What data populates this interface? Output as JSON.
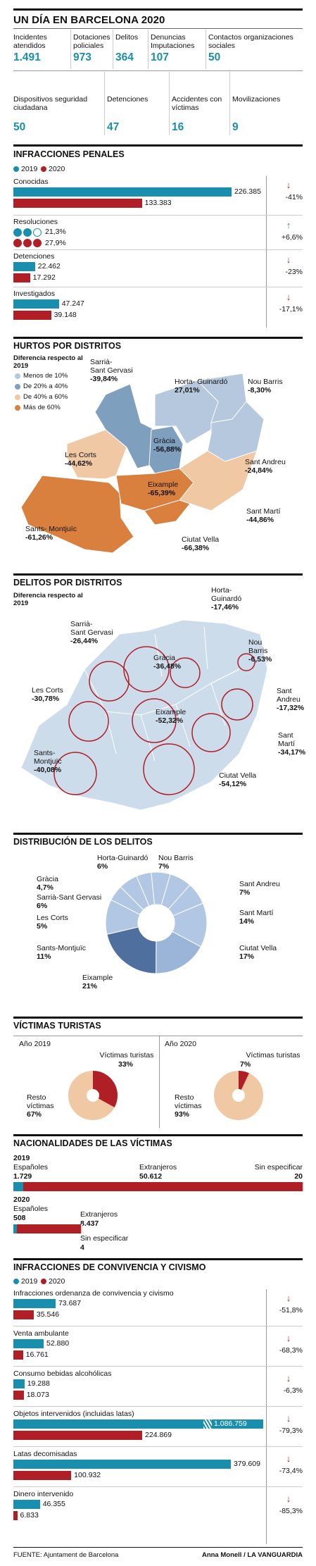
{
  "header": {
    "title": "UN DÍA EN BARCELONA 2020"
  },
  "stats_row1": [
    {
      "label": "Incidentes atendidos",
      "value": "1.491"
    },
    {
      "label": "Dotaciones policiales",
      "value": "973"
    },
    {
      "label": "Delitos",
      "value": "364"
    },
    {
      "label": "Denuncias Imputaciones",
      "value": "107"
    },
    {
      "label": "Contactos organizaciones sociales",
      "value": "50"
    }
  ],
  "stats_row2": [
    {
      "label": "Dispositivos seguridad ciudadana",
      "value": "50"
    },
    {
      "label": "Detenciones",
      "value": "47"
    },
    {
      "label": "Accidentes con víctimas",
      "value": "16"
    },
    {
      "label": "Movilizaciones",
      "value": "9"
    }
  ],
  "infracciones_penales": {
    "title": "INFRACCIONES PENALES",
    "legend": [
      "2019",
      "2020"
    ],
    "items": [
      {
        "label": "Conocidas",
        "v2019": "226.385",
        "v2020": "133.383",
        "n2019": 226385,
        "n2020": 133383,
        "change": "-41%",
        "dir": "down"
      },
      {
        "label": "Resoluciones",
        "v2019": "21,3%",
        "v2020": "27,9%",
        "change": "+6,6%",
        "dir": "up"
      },
      {
        "label": "Detenciones",
        "v2019": "22.462",
        "v2020": "17.292",
        "n2019": 22462,
        "n2020": 17292,
        "change": "-23%",
        "dir": "down"
      },
      {
        "label": "Investigados",
        "v2019": "47.247",
        "v2020": "39.148",
        "n2019": 47247,
        "n2020": 39148,
        "change": "-17,1%",
        "dir": "down"
      }
    ]
  },
  "hurtos": {
    "title": "HURTOS POR DISTRITOS",
    "legend_title": "Diferencia respecto al 2019",
    "legend": [
      {
        "label": "Menos de 10%",
        "color": "#b5c8dd"
      },
      {
        "label": "De 20% a 40%",
        "color": "#7f9fbf"
      },
      {
        "label": "De 40% a 60%",
        "color": "#f0c8a4"
      },
      {
        "label": "Más de 60%",
        "color": "#d9803f"
      }
    ],
    "districts": [
      {
        "name": "Sarrià-\nSant Gervasi",
        "value": "-39,84%"
      },
      {
        "name": "Horta- Guinardó",
        "value": "27,01%"
      },
      {
        "name": "Nou Barris",
        "value": "-8,30%"
      },
      {
        "name": "Les Corts",
        "value": "-44,62%"
      },
      {
        "name": "Gràcia",
        "value": "-56,88%"
      },
      {
        "name": "Sant Andreu",
        "value": "-24,84%"
      },
      {
        "name": "Eixample",
        "value": "-65,39%"
      },
      {
        "name": "Sant Martí",
        "value": "-44,86%"
      },
      {
        "name": "Sants- Montjuïc",
        "value": "-61,26%"
      },
      {
        "name": "Ciutat Vella",
        "value": "-66,38%"
      }
    ]
  },
  "delitos": {
    "title": "DELITOS POR DISTRITOS",
    "legend_title": "Diferencia respecto al 2019",
    "districts": [
      {
        "name": "Sarrià-\nSant Gervasi",
        "value": "-26,44%"
      },
      {
        "name": "Horta-\nGuinardó",
        "value": "-17,46%"
      },
      {
        "name": "Nou\nBarris",
        "value": "-6,53%"
      },
      {
        "name": "Gràcia",
        "value": "-36,48%"
      },
      {
        "name": "Les Corts",
        "value": "-30,78%"
      },
      {
        "name": "Sant\nAndreu",
        "value": "-17,32%"
      },
      {
        "name": "Eixample",
        "value": "-52,32%"
      },
      {
        "name": "Sant\nMartí",
        "value": "-34,17%"
      },
      {
        "name": "Sants-\nMontjuïc",
        "value": "-40,08%"
      },
      {
        "name": "Ciutat Vella",
        "value": "-54,12%"
      }
    ]
  },
  "distribucion": {
    "title": "DISTRIBUCIÓN DE LOS DELITOS",
    "slices": [
      {
        "name": "Horta-Guinardó",
        "pct": "6%",
        "value": 6
      },
      {
        "name": "Nou Barris",
        "pct": "7%",
        "value": 7
      },
      {
        "name": "Sant Andreu",
        "pct": "7%",
        "value": 7
      },
      {
        "name": "Sant Martí",
        "pct": "14%",
        "value": 14
      },
      {
        "name": "Ciutat Vella",
        "pct": "17%",
        "value": 17
      },
      {
        "name": "Eixample",
        "pct": "21%",
        "value": 21
      },
      {
        "name": "Sants-Montjuïc",
        "pct": "11%",
        "value": 11
      },
      {
        "name": "Les Corts",
        "pct": "5%",
        "value": 5
      },
      {
        "name": "Sarrià-Sant Gervasi",
        "pct": "6%",
        "value": 6
      },
      {
        "name": "Gràcia",
        "pct": "4,7%",
        "value": 4.7
      }
    ]
  },
  "victimas": {
    "title": "VÍCTIMAS TURISTAS",
    "y2019": {
      "year": "Año 2019",
      "tur_label": "Víctimas turistas",
      "tur": "33%",
      "tur_v": 33,
      "rest_label": "Resto víctimas",
      "rest": "67%"
    },
    "y2020": {
      "year": "Año 2020",
      "tur_label": "Víctimas turistas",
      "tur": "7%",
      "tur_v": 7,
      "rest_label": "Resto víctimas",
      "rest": "93%"
    }
  },
  "nacionalidades": {
    "title": "NACIONALIDADES DE LAS VÍCTIMAS",
    "y2019": {
      "year": "2019",
      "esp_label": "Españoles",
      "esp": "1.729",
      "esp_v": 1729,
      "ext_label": "Extranjeros",
      "ext": "50.612",
      "ext_v": 50612,
      "sin_label": "Sin especificar",
      "sin": "20",
      "sin_v": 20
    },
    "y2020": {
      "year": "2020",
      "esp_label": "Españoles",
      "esp": "508",
      "esp_v": 508,
      "ext_label": "Extranjeros",
      "ext": "8.437",
      "ext_v": 8437,
      "sin_label": "Sin especificar",
      "sin": "4",
      "sin_v": 4
    }
  },
  "convivencia": {
    "title": "INFRACCIONES DE CONVIVENCIA Y CIVISMO",
    "legend": [
      "2019",
      "2020"
    ],
    "items": [
      {
        "label": "Infracciones ordenanza de convivencia y civismo",
        "v2019": "73.687",
        "v2020": "35.546",
        "n2019": 73687,
        "n2020": 35546,
        "change": "-51,8%"
      },
      {
        "label": "Venta ambulante",
        "v2019": "52.880",
        "v2020": "16.761",
        "n2019": 52880,
        "n2020": 16761,
        "change": "-68,3%"
      },
      {
        "label": "Consumo bebidas alcohólicas",
        "v2019": "19.288",
        "v2020": "18.073",
        "n2019": 19288,
        "n2020": 18073,
        "change": "-6,3%"
      },
      {
        "label": "Objetos intervenidos (incluidas latas)",
        "v2019": "1.086.759",
        "v2020": "224.869",
        "n2019": 1086759,
        "n2020": 224869,
        "change": "-79,3%"
      },
      {
        "label": "Latas decomisadas",
        "v2019": "379.609",
        "v2020": "100.932",
        "n2019": 379609,
        "n2020": 100932,
        "change": "-73,4%"
      },
      {
        "label": "Dinero intervenido",
        "v2019": "46.355",
        "v2020": "6.833",
        "n2019": 46355,
        "n2020": 6833,
        "change": "-85,3%"
      }
    ]
  },
  "footer": {
    "source_label": "FUENTE:",
    "source": "Ajuntament de Barcelona",
    "credit": "Anna Monell / LA VANGUARDIA"
  },
  "colors": {
    "c2019": "#1a8fad",
    "c2020": "#b01e26",
    "peach": "#f0c8a4",
    "blue_light": "#b5c8dd",
    "blue_mid": "#7f9fbf"
  },
  "chart_data": [
    {
      "type": "bar",
      "title": "INFRACCIONES PENALES",
      "categories": [
        "Conocidas",
        "Detenciones",
        "Investigados"
      ],
      "series": [
        {
          "name": "2019",
          "values": [
            226385,
            22462,
            47247
          ]
        },
        {
          "name": "2020",
          "values": [
            133383,
            17292,
            39148
          ]
        }
      ]
    },
    {
      "type": "pie",
      "title": "DISTRIBUCIÓN DE LOS DELITOS",
      "categories": [
        "Horta-Guinardó",
        "Nou Barris",
        "Sant Andreu",
        "Sant Martí",
        "Ciutat Vella",
        "Eixample",
        "Sants-Montjuïc",
        "Les Corts",
        "Sarrià-Sant Gervasi",
        "Gràcia"
      ],
      "values": [
        6,
        7,
        7,
        14,
        17,
        21,
        11,
        5,
        6,
        4.7
      ]
    },
    {
      "type": "pie",
      "title": "VÍCTIMAS TURISTAS",
      "categories": [
        "Víctimas turistas",
        "Resto víctimas"
      ],
      "series": [
        {
          "name": "Año 2019",
          "values": [
            33,
            67
          ]
        },
        {
          "name": "Año 2020",
          "values": [
            7,
            93
          ]
        }
      ]
    },
    {
      "type": "bar",
      "title": "NACIONALIDADES DE LAS VÍCTIMAS",
      "categories": [
        "Españoles",
        "Extranjeros",
        "Sin especificar"
      ],
      "series": [
        {
          "name": "2019",
          "values": [
            1729,
            50612,
            20
          ]
        },
        {
          "name": "2020",
          "values": [
            508,
            8437,
            4
          ]
        }
      ]
    },
    {
      "type": "bar",
      "title": "INFRACCIONES DE CONVIVENCIA Y CIVISMO",
      "categories": [
        "Infracciones ordenanza de convivencia y civismo",
        "Venta ambulante",
        "Consumo bebidas alcohólicas",
        "Objetos intervenidos (incluidas latas)",
        "Latas decomisadas",
        "Dinero intervenido"
      ],
      "series": [
        {
          "name": "2019",
          "values": [
            73687,
            52880,
            19288,
            1086759,
            379609,
            46355
          ]
        },
        {
          "name": "2020",
          "values": [
            35546,
            16761,
            18073,
            224869,
            100932,
            6833
          ]
        }
      ]
    }
  ]
}
